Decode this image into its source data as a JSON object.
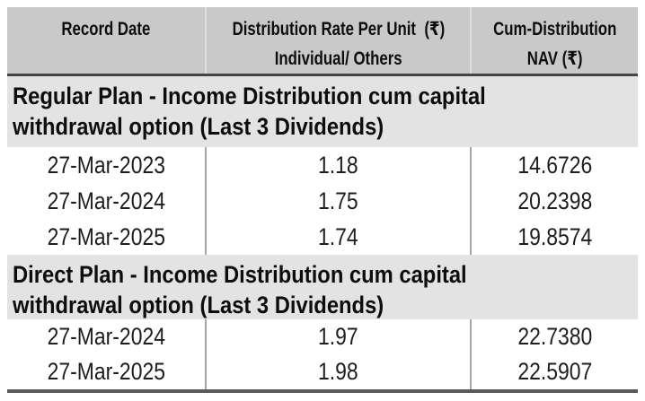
{
  "colors": {
    "header_bg": "#c9c9c9",
    "section_bg": "#e3e3e3",
    "border_dark": "#454545",
    "border_bottom": "#5a5a5a"
  },
  "table": {
    "header": {
      "record_date": "Record Date",
      "distribution_rate_line1": "Distribution Rate Per Unit  (₹)",
      "distribution_rate_line2": "Individual/ Others",
      "cum_nav_line1": "Cum-Distribution",
      "cum_nav_line2": "NAV (₹)"
    },
    "sections": [
      {
        "title_line1": "Regular Plan - Income Distribution cum capital",
        "title_line2": "withdrawal option (Last 3 Dividends)",
        "rows": [
          {
            "record_date": "27-Mar-2023",
            "rate": "1.18",
            "nav": "14.6726"
          },
          {
            "record_date": "27-Mar-2024",
            "rate": "1.75",
            "nav": "20.2398"
          },
          {
            "record_date": "27-Mar-2025",
            "rate": "1.74",
            "nav": "19.8574"
          }
        ]
      },
      {
        "title_line1": "Direct Plan - Income Distribution cum capital",
        "title_line2": "withdrawal option (Last 3 Dividends)",
        "rows": [
          {
            "record_date": "27-Mar-2024",
            "rate": "1.97",
            "nav": "22.7380"
          },
          {
            "record_date": "27-Mar-2025",
            "rate": "1.98",
            "nav": "22.5907"
          }
        ]
      }
    ]
  }
}
